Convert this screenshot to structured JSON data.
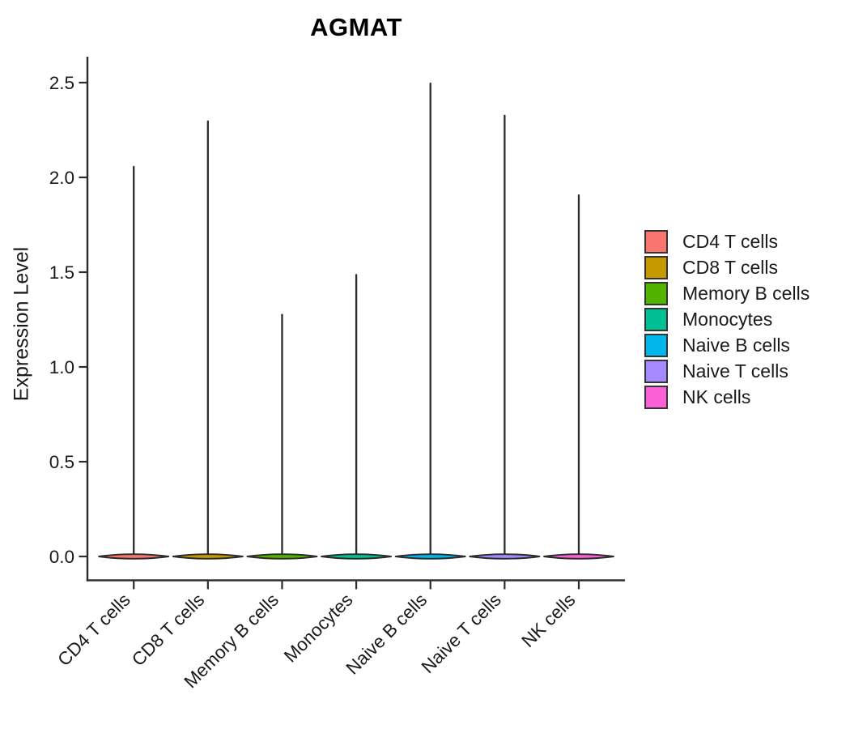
{
  "figure": {
    "title": "AGMAT",
    "y_axis": {
      "label": "Expression Level",
      "tick_labels": [
        "0.0",
        "0.5",
        "1.0",
        "1.5",
        "2.0",
        "2.5"
      ]
    },
    "x_axis": {
      "tick_labels": [
        "CD4 T cells",
        "CD8 T cells",
        "Memory B cells",
        "Monocytes",
        "Naive B cells",
        "Naive T cells",
        "NK cells"
      ]
    }
  },
  "chart_data": {
    "type": "violin",
    "title": "AGMAT",
    "xlabel": "",
    "ylabel": "Expression Level",
    "ylim": [
      0,
      2.6
    ],
    "y_ticks": [
      0.0,
      0.5,
      1.0,
      1.5,
      2.0,
      2.5
    ],
    "categories": [
      "CD4 T cells",
      "CD8 T cells",
      "Memory B cells",
      "Monocytes",
      "Naive B cells",
      "Naive T cells",
      "NK cells"
    ],
    "series": [
      {
        "name": "expression_min",
        "values": [
          0,
          0,
          0,
          0,
          0,
          0,
          0
        ]
      },
      {
        "name": "expression_max",
        "values": [
          2.06,
          2.3,
          1.28,
          1.49,
          2.5,
          2.33,
          1.91
        ]
      }
    ],
    "shape_note": "each violin is a flat wide base at 0 with a thin vertical spike up to expression_max",
    "colors": [
      "#F8766D",
      "#C49A00",
      "#53B400",
      "#00C094",
      "#00B6EB",
      "#A58AFF",
      "#FB61D7"
    ],
    "axis_color": "#2b2b2b",
    "text_color": "#1a1a1a",
    "grid": false,
    "legend_position": "right"
  },
  "legend": {
    "items": [
      {
        "label": "CD4 T cells",
        "color": "#F8766D"
      },
      {
        "label": "CD8 T cells",
        "color": "#C49A00"
      },
      {
        "label": "Memory B cells",
        "color": "#53B400"
      },
      {
        "label": "Monocytes",
        "color": "#00C094"
      },
      {
        "label": "Naive B cells",
        "color": "#00B6EB"
      },
      {
        "label": "Naive T cells",
        "color": "#A58AFF"
      },
      {
        "label": "NK cells",
        "color": "#FB61D7"
      }
    ]
  }
}
